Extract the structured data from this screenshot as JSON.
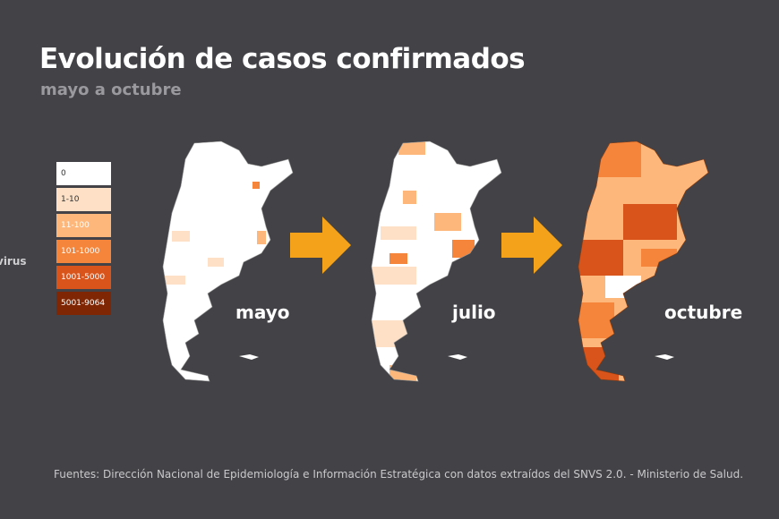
{
  "header": {
    "title": "Evolución de casos confirmados",
    "subtitle": "mayo a octubre"
  },
  "edge_text": "virus",
  "legend": {
    "items": [
      "0",
      "1-10",
      "11-100",
      "101-1000",
      "1001-5000",
      "5001-9064"
    ]
  },
  "maps": [
    {
      "label": "mayo"
    },
    {
      "label": "julio"
    },
    {
      "label": "octubre"
    }
  ],
  "source": "Fuentes: Dirección Nacional de Epidemiología e Información Estratégica con datos extraídos del SNVS 2.0. - Ministerio de Salud."
}
